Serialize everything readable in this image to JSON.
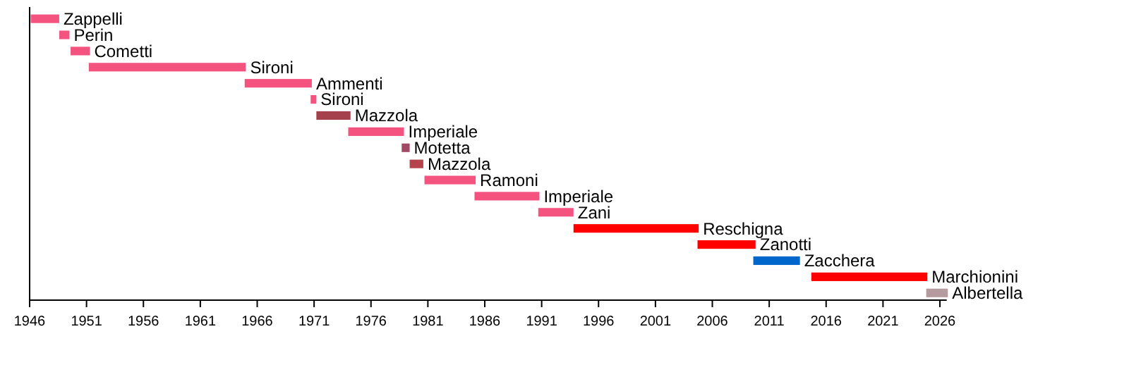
{
  "chart_data": {
    "type": "bar",
    "orientation": "horizontal",
    "categories": [
      "Zappelli",
      "Perin",
      "Cometti",
      "Sironi",
      "Ammenti",
      "Sironi",
      "Mazzola",
      "Imperiale",
      "Motetta",
      "Mazzola",
      "Ramoni",
      "Imperiale",
      "Zani",
      "Reschigna",
      "Zanotti",
      "Zacchera",
      "Marchionini",
      "Albertella"
    ],
    "base": [
      1946.1,
      1948.6,
      1949.6,
      1951.2,
      1964.9,
      1970.7,
      1971.2,
      1974.0,
      1978.7,
      1979.4,
      1980.7,
      1985.1,
      1990.7,
      1993.8,
      2004.7,
      2009.6,
      2014.7,
      2024.8
    ],
    "values": [
      2.5,
      0.9,
      1.7,
      13.8,
      5.9,
      0.5,
      3.0,
      4.9,
      0.7,
      1.2,
      4.5,
      5.7,
      3.1,
      11.0,
      5.1,
      4.1,
      10.2,
      1.9
    ],
    "colors": [
      "#f4527f",
      "#f4527f",
      "#f4527f",
      "#f4527f",
      "#f4527f",
      "#f4527f",
      "#a5404d",
      "#f4527f",
      "#a04a66",
      "#b5434b",
      "#f4527f",
      "#f4527f",
      "#f4527f",
      "#ff0000",
      "#ff0000",
      "#0066cc",
      "#ff0000",
      "#b59a9e"
    ],
    "xlim": [
      1946,
      2026.6
    ],
    "xticks": [
      1946,
      1951,
      1956,
      1961,
      1966,
      1971,
      1976,
      1981,
      1986,
      1991,
      1996,
      2001,
      2006,
      2011,
      2016,
      2021,
      2026
    ]
  }
}
